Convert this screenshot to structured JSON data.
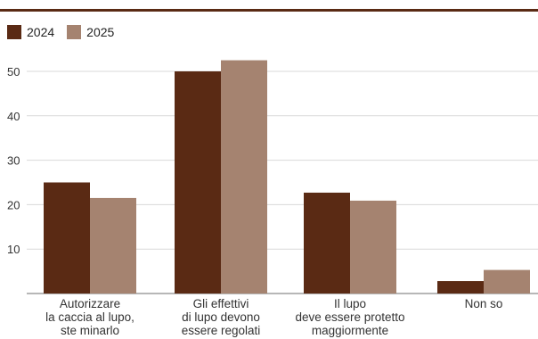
{
  "chart_data": {
    "type": "bar",
    "title": "",
    "xlabel": "",
    "ylabel": "",
    "categories": [
      [
        "Autorizzare",
        "la caccia al lupo,",
        "ste minarlo"
      ],
      [
        "Gli effettivi",
        "di lupo devono",
        "essere regolati"
      ],
      [
        "Il lupo",
        "deve essere protetto",
        "maggiormente"
      ],
      [
        "Non so"
      ]
    ],
    "series": [
      {
        "name": "2024",
        "color": "#5a2a14",
        "values": [
          25,
          50,
          22.7,
          2.8
        ]
      },
      {
        "name": "2025",
        "color": "#a58370",
        "values": [
          21.5,
          52.5,
          20.9,
          5.3
        ]
      }
    ],
    "ylim": [
      0,
      55
    ],
    "yticks": [
      10,
      20,
      30,
      40,
      50
    ],
    "grid": true,
    "legend": "top-left"
  }
}
